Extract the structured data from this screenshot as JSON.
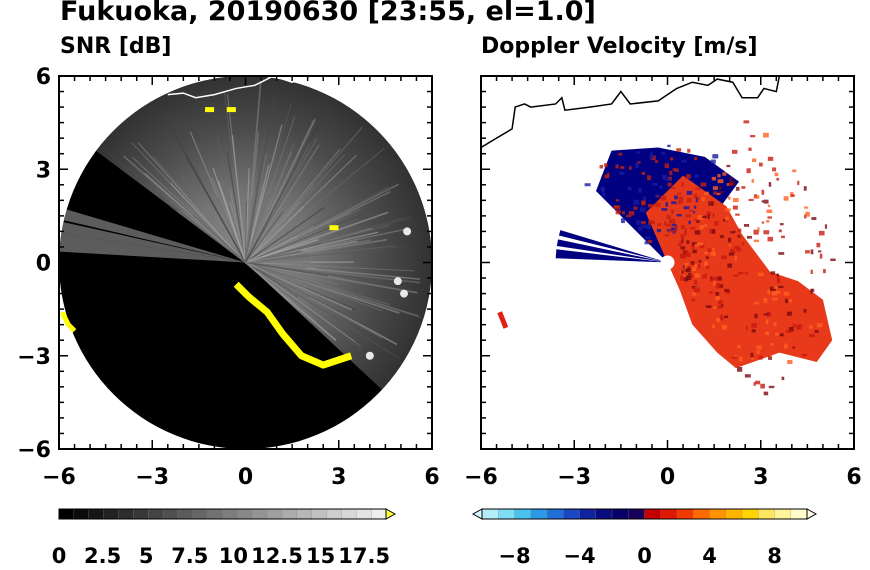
{
  "figure": {
    "title": "Fukuoka, 20190630 [23:55, el=1.0]"
  },
  "chart_data": [
    {
      "type": "heatmap",
      "title": "SNR [dB]",
      "xlabel": "",
      "ylabel": "",
      "xlim": [
        -6,
        6
      ],
      "ylim": [
        -6,
        6
      ],
      "x_ticks": [
        "−6",
        "−3",
        "0",
        "3",
        "6"
      ],
      "y_ticks": [
        "6",
        "3",
        "0",
        "−3",
        "−6"
      ],
      "radar_range": 6,
      "colorbar": {
        "range": [
          0,
          18.75
        ],
        "tick_labels": [
          "0",
          "2.5",
          "5",
          "7.5",
          "10",
          "12.5",
          "15",
          "17.5"
        ],
        "tick_values": [
          0,
          2.5,
          5,
          7.5,
          10,
          12.5,
          15,
          17.5
        ],
        "extend": "max",
        "colors": [
          "#000000",
          "#0b0b0b",
          "#161616",
          "#222222",
          "#2d2d2d",
          "#383838",
          "#444444",
          "#4f4f4f",
          "#5b5b5b",
          "#666666",
          "#727272",
          "#7d7d7d",
          "#888888",
          "#949494",
          "#9f9f9f",
          "#abab ab",
          "#b6b6b6",
          "#c1c1c1",
          "#cdcdcd",
          "#d8d8d8",
          "#e4e4e4",
          "#efefef"
        ],
        "over_color": "#ffff3a"
      },
      "colors": {
        "background": "#000000",
        "noise": "#3a3a3a",
        "high": "#ffff00",
        "coast": "#ffffff"
      }
    },
    {
      "type": "heatmap",
      "title": "Doppler Velocity [m/s]",
      "xlabel": "",
      "ylabel": "",
      "xlim": [
        -6,
        6
      ],
      "ylim": [
        -6,
        6
      ],
      "x_ticks": [
        "−6",
        "−3",
        "0",
        "3",
        "6"
      ],
      "y_ticks": [
        "6",
        "3",
        "0",
        "−3",
        "−6"
      ],
      "colorbar": {
        "range": [
          -10,
          10
        ],
        "tick_labels": [
          "−8",
          "−4",
          "0",
          "4",
          "8"
        ],
        "tick_values": [
          -8,
          -4,
          0,
          4,
          8
        ],
        "extend": "both",
        "colors": [
          "#b4ecf8",
          "#7fdcf5",
          "#4ac2ee",
          "#2a9ae6",
          "#1f6fd8",
          "#1a48c4",
          "#10239f",
          "#0b0b80",
          "#07006a",
          "#18005a",
          "#c40000",
          "#e01a00",
          "#f03a00",
          "#ff6a00",
          "#ff9400",
          "#ffb400",
          "#ffd400",
          "#ffe660",
          "#fff49a",
          "#fffccc"
        ],
        "under_color": "#d8f6ff",
        "over_color": "#fffde8"
      },
      "colors": {
        "negative": "#000080",
        "positive": "#e83a1a",
        "coast": "#000000"
      }
    }
  ]
}
